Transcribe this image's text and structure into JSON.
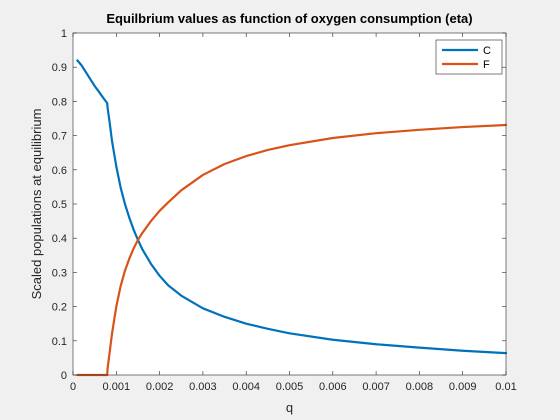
{
  "chart_data": {
    "type": "line",
    "title": "Equilbrium values as function of oxygen consumption (eta)",
    "xlabel": "q",
    "ylabel": "Scaled populations at equilibrium",
    "xlim": [
      0,
      0.01
    ],
    "ylim": [
      0,
      1
    ],
    "x_ticks": [
      "0",
      "0.001",
      "0.002",
      "0.003",
      "0.004",
      "0.005",
      "0.006",
      "0.007",
      "0.008",
      "0.009",
      "0.01"
    ],
    "y_ticks": [
      "0",
      "0.1",
      "0.2",
      "0.3",
      "0.4",
      "0.5",
      "0.6",
      "0.7",
      "0.8",
      "0.9",
      "1"
    ],
    "grid": false,
    "legend_position": "top-right",
    "series": [
      {
        "name": "C",
        "color": "#0072BD",
        "x": [
          0.0001,
          0.0002,
          0.0003,
          0.0004,
          0.0005,
          0.0006,
          0.0007,
          0.00079,
          0.0008,
          0.00085,
          0.0009,
          0.001,
          0.0011,
          0.0012,
          0.0013,
          0.0014,
          0.0015,
          0.0016,
          0.0018,
          0.002,
          0.0022,
          0.0025,
          0.003,
          0.0035,
          0.004,
          0.0045,
          0.005,
          0.006,
          0.007,
          0.008,
          0.009,
          0.01
        ],
        "y": [
          0.92,
          0.905,
          0.885,
          0.865,
          0.845,
          0.828,
          0.81,
          0.795,
          0.78,
          0.735,
          0.685,
          0.61,
          0.548,
          0.5,
          0.46,
          0.425,
          0.395,
          0.368,
          0.325,
          0.29,
          0.262,
          0.232,
          0.195,
          0.17,
          0.15,
          0.135,
          0.122,
          0.103,
          0.09,
          0.08,
          0.071,
          0.064
        ]
      },
      {
        "name": "F",
        "color": "#D95319",
        "x": [
          0.0001,
          0.0004,
          0.0007,
          0.00079,
          0.0008,
          0.0009,
          0.001,
          0.0011,
          0.0012,
          0.0013,
          0.0014,
          0.0015,
          0.0016,
          0.0018,
          0.002,
          0.0022,
          0.0025,
          0.003,
          0.0035,
          0.004,
          0.0045,
          0.005,
          0.006,
          0.007,
          0.008,
          0.009,
          0.01
        ],
        "y": [
          0.0,
          0.0,
          0.0,
          0.0,
          0.02,
          0.12,
          0.2,
          0.26,
          0.305,
          0.34,
          0.37,
          0.395,
          0.415,
          0.45,
          0.48,
          0.505,
          0.54,
          0.585,
          0.617,
          0.64,
          0.658,
          0.672,
          0.693,
          0.707,
          0.717,
          0.725,
          0.731
        ]
      }
    ]
  }
}
